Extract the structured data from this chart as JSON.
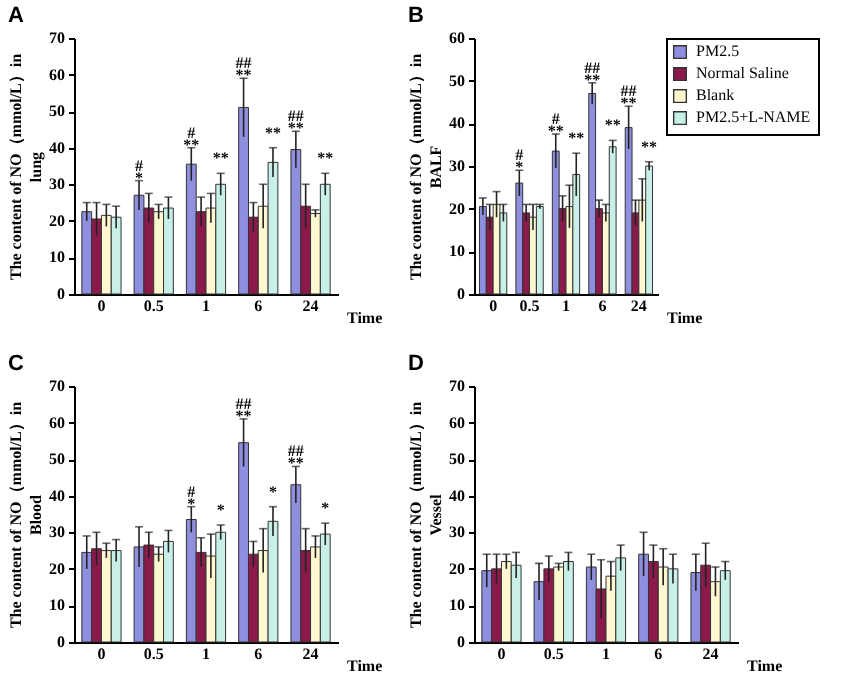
{
  "chart_data": [
    {
      "type": "bar",
      "title": "A",
      "ylabel": "The content of NO（mmol/L）in lung",
      "xlabel": "Time",
      "categories": [
        "0",
        "0.5",
        "1",
        "6",
        "24"
      ],
      "ylim": [
        0,
        70
      ],
      "yticks": [
        0,
        10,
        20,
        30,
        40,
        50,
        60,
        70
      ],
      "grid": false,
      "series": [
        {
          "color": "#8f8fe0",
          "values": [
            22.5,
            27,
            35.5,
            51,
            39.5
          ],
          "errors": [
            2.5,
            4,
            4.5,
            8,
            5
          ],
          "value_labels": [
            null,
            "#\n*",
            "#\n**",
            "##\n**",
            "##\n**"
          ]
        },
        {
          "color": "#8b1a4a",
          "values": [
            20.5,
            23.5,
            22.5,
            21,
            24
          ],
          "errors": [
            4.5,
            4,
            4,
            4,
            6
          ]
        },
        {
          "color": "#fff8d0",
          "values": [
            21.5,
            22.5,
            23.5,
            24,
            22
          ],
          "errors": [
            3,
            2,
            4,
            6,
            1
          ]
        },
        {
          "color": "#c8f0e8",
          "values": [
            21,
            23.5,
            30,
            36,
            30
          ],
          "errors": [
            3,
            3,
            3,
            4,
            3
          ],
          "value_labels": [
            null,
            null,
            "**",
            "**",
            "**"
          ]
        }
      ]
    },
    {
      "type": "bar",
      "title": "B",
      "ylabel": "The content of NO（mmol/L）in BALF",
      "xlabel": "Time",
      "categories": [
        "0",
        "0.5",
        "1",
        "6",
        "24"
      ],
      "ylim": [
        0,
        60
      ],
      "yticks": [
        0,
        10,
        20,
        30,
        40,
        50,
        60
      ],
      "grid": false,
      "legend": "right",
      "series": [
        {
          "name": "PM2.5",
          "color": "#8f8fe0",
          "values": [
            20.5,
            26,
            33.5,
            47,
            39
          ],
          "errors": [
            2,
            3,
            4,
            2.5,
            5
          ],
          "value_labels": [
            null,
            "#\n*",
            "#\n**",
            "##\n**",
            "##\n**"
          ]
        },
        {
          "name": "Normal Saline",
          "color": "#8b1a4a",
          "values": [
            18,
            19,
            20,
            20,
            19
          ],
          "errors": [
            3,
            2,
            3,
            2,
            3
          ]
        },
        {
          "name": "Blank",
          "color": "#fff8d0",
          "values": [
            21,
            18,
            20.5,
            19,
            22
          ],
          "errors": [
            3,
            3,
            5,
            2,
            5
          ]
        },
        {
          "name": "PM2.5+L-NAME",
          "color": "#c8f0e8",
          "values": [
            19,
            20.5,
            28,
            34.5,
            30
          ],
          "errors": [
            2,
            0.5,
            5,
            1.5,
            1
          ],
          "value_labels": [
            null,
            null,
            "**",
            "**",
            "**"
          ]
        }
      ]
    },
    {
      "type": "bar",
      "title": "C",
      "ylabel": "The content of NO（mmol/L）in Blood",
      "xlabel": "Time",
      "categories": [
        "0",
        "0.5",
        "1",
        "6",
        "24"
      ],
      "ylim": [
        0,
        70
      ],
      "yticks": [
        0,
        10,
        20,
        30,
        40,
        50,
        60,
        70
      ],
      "grid": false,
      "series": [
        {
          "color": "#8f8fe0",
          "values": [
            24.5,
            26,
            33.5,
            54.5,
            43
          ],
          "errors": [
            4.5,
            5.5,
            3.5,
            6.5,
            5
          ],
          "value_labels": [
            null,
            null,
            "#\n*",
            "##\n**",
            "##\n**"
          ]
        },
        {
          "color": "#8b1a4a",
          "values": [
            25.5,
            26.5,
            24.5,
            24,
            25
          ],
          "errors": [
            4.5,
            3.5,
            4,
            3.5,
            6
          ]
        },
        {
          "color": "#fff8d0",
          "values": [
            25,
            24,
            23.5,
            25,
            26
          ],
          "errors": [
            2,
            2,
            6,
            6,
            3
          ]
        },
        {
          "color": "#c8f0e8",
          "values": [
            25,
            27.5,
            30,
            33,
            29.5
          ],
          "errors": [
            3,
            3,
            2,
            4,
            3
          ],
          "value_labels": [
            null,
            null,
            "*",
            "*",
            "*"
          ]
        }
      ]
    },
    {
      "type": "bar",
      "title": "D",
      "ylabel": "The content of NO（mmol/L）in Vessel",
      "xlabel": "Time",
      "categories": [
        "0",
        "0.5",
        "1",
        "6",
        "24"
      ],
      "ylim": [
        0,
        70
      ],
      "yticks": [
        0,
        10,
        20,
        30,
        40,
        50,
        60,
        70
      ],
      "grid": false,
      "series": [
        {
          "color": "#8f8fe0",
          "values": [
            19.5,
            16.5,
            20.5,
            24,
            19
          ],
          "errors": [
            4.5,
            5,
            3.5,
            6,
            5
          ]
        },
        {
          "color": "#8b1a4a",
          "values": [
            20,
            20,
            14.5,
            22,
            21
          ],
          "errors": [
            4,
            3.5,
            8,
            4.5,
            6
          ]
        },
        {
          "color": "#fff8d0",
          "values": [
            22,
            20.5,
            18,
            20.5,
            16.5
          ],
          "errors": [
            2,
            1,
            4,
            5,
            4
          ]
        },
        {
          "color": "#c8f0e8",
          "values": [
            21,
            22,
            23,
            20,
            19.5
          ],
          "errors": [
            3.5,
            2.5,
            3.5,
            4,
            2.5
          ]
        }
      ]
    }
  ]
}
